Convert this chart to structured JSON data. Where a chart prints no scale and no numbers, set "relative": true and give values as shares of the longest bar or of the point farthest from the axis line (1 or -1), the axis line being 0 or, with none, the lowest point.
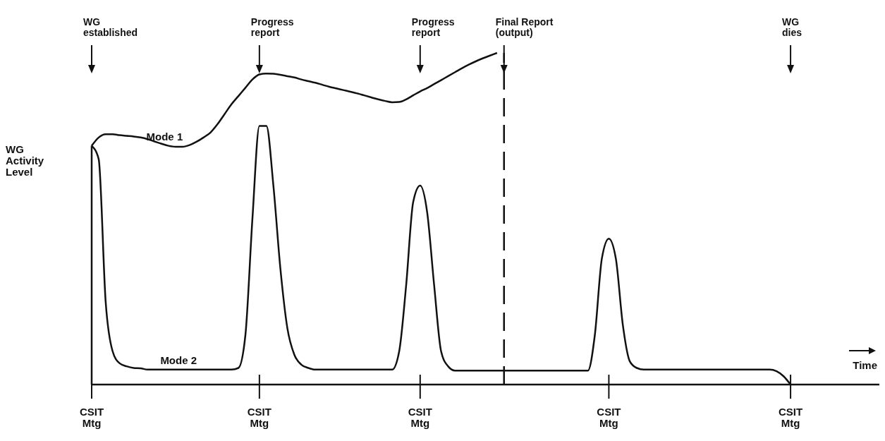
{
  "chart_data": {
    "type": "line",
    "relative": true,
    "xlabel": "Time",
    "ylabel": "WG\nActivity\nLevel",
    "categories": [
      "CSIT\nMtg",
      null,
      null,
      null,
      null,
      null,
      null,
      null,
      null,
      null,
      null,
      null,
      null,
      null,
      null,
      null,
      null,
      null,
      null,
      null,
      null,
      null,
      null,
      null,
      "CSIT\nMtg",
      null,
      null,
      null,
      null,
      null,
      null,
      null,
      null,
      null,
      null,
      null,
      null,
      null,
      null,
      null,
      null,
      null,
      null,
      null,
      null,
      null,
      null,
      "CSIT\nMtg",
      null,
      null,
      null,
      null,
      null,
      null,
      null,
      null,
      null,
      null,
      null,
      null,
      null,
      null,
      null,
      null,
      null,
      null,
      null,
      null,
      null,
      null,
      null,
      null,
      null,
      null,
      "CSIT\nMtg",
      null,
      null,
      null,
      null,
      null,
      null,
      null,
      null,
      null,
      null,
      null,
      null,
      null,
      null,
      null,
      null,
      null,
      null,
      null,
      null,
      null,
      null,
      null,
      null,
      null,
      "CSIT\nMtg",
      null,
      null,
      null,
      null,
      null,
      null,
      null,
      null,
      null,
      null,
      null
    ],
    "legend": false,
    "series": [
      {
        "name": "Mode 1",
        "color": "#111111",
        "values": [
          0.72,
          0.745,
          0.755,
          0.755,
          0.752,
          0.75,
          0.748,
          0.745,
          0.74,
          0.733,
          0.726,
          0.72,
          0.717,
          0.717,
          0.722,
          0.732,
          0.745,
          0.76,
          0.785,
          0.815,
          0.845,
          0.87,
          0.895,
          0.92,
          0.935,
          0.938,
          0.937,
          0.934,
          0.93,
          0.926,
          0.92,
          0.915,
          0.91,
          0.904,
          0.898,
          0.893,
          0.888,
          0.883,
          0.878,
          0.872,
          0.866,
          0.86,
          0.855,
          0.851,
          0.852,
          0.86,
          0.872,
          0.884,
          0.894,
          0.906,
          0.918,
          0.93,
          0.942,
          0.954,
          0.965,
          0.975,
          0.984,
          0.992,
          1.0,
          null,
          null,
          null,
          null,
          null,
          null,
          null,
          null,
          null,
          null,
          null,
          null,
          null,
          null,
          null,
          null,
          null,
          null,
          null,
          null,
          null,
          null,
          null,
          null,
          null,
          null,
          null,
          null,
          null,
          null,
          null,
          null,
          null,
          null,
          null,
          null,
          null,
          null,
          null,
          null,
          null,
          null,
          null,
          null,
          null,
          null,
          null,
          null,
          null,
          null,
          null,
          null,
          null
        ]
      },
      {
        "name": "Mode 2",
        "color": "#111111",
        "values": [
          0.72,
          0.68,
          0.25,
          0.1,
          0.064,
          0.055,
          0.05,
          0.049,
          0.045,
          0.045,
          0.045,
          0.045,
          0.045,
          0.045,
          0.045,
          0.045,
          0.045,
          0.045,
          0.045,
          0.045,
          0.045,
          0.05,
          0.15,
          0.5,
          0.78,
          0.78,
          0.6,
          0.35,
          0.17,
          0.09,
          0.06,
          0.05,
          0.045,
          0.045,
          0.045,
          0.045,
          0.045,
          0.045,
          0.045,
          0.045,
          0.045,
          0.045,
          0.045,
          0.045,
          0.1,
          0.3,
          0.55,
          0.6,
          0.52,
          0.3,
          0.1,
          0.055,
          0.042,
          0.042,
          0.042,
          0.042,
          0.042,
          0.042,
          0.042,
          0.042,
          0.042,
          0.042,
          0.042,
          0.042,
          0.042,
          0.042,
          0.042,
          0.042,
          0.042,
          0.042,
          0.042,
          0.042,
          0.15,
          0.38,
          0.44,
          0.38,
          0.18,
          0.07,
          0.05,
          0.045,
          0.045,
          0.045,
          0.045,
          0.045,
          0.045,
          0.045,
          0.045,
          0.045,
          0.045,
          0.045,
          0.045,
          0.045,
          0.045,
          0.045,
          0.045,
          0.045,
          0.045,
          0.045,
          0.04,
          0.025,
          0,
          null,
          null,
          null,
          null,
          null,
          null,
          null,
          null,
          null,
          null,
          null
        ]
      }
    ],
    "annotations": [
      "WG\nestablished",
      "Progress\nreport",
      "Progress\nreport",
      "Final Report\n(output)",
      "WG\ndies"
    ]
  }
}
